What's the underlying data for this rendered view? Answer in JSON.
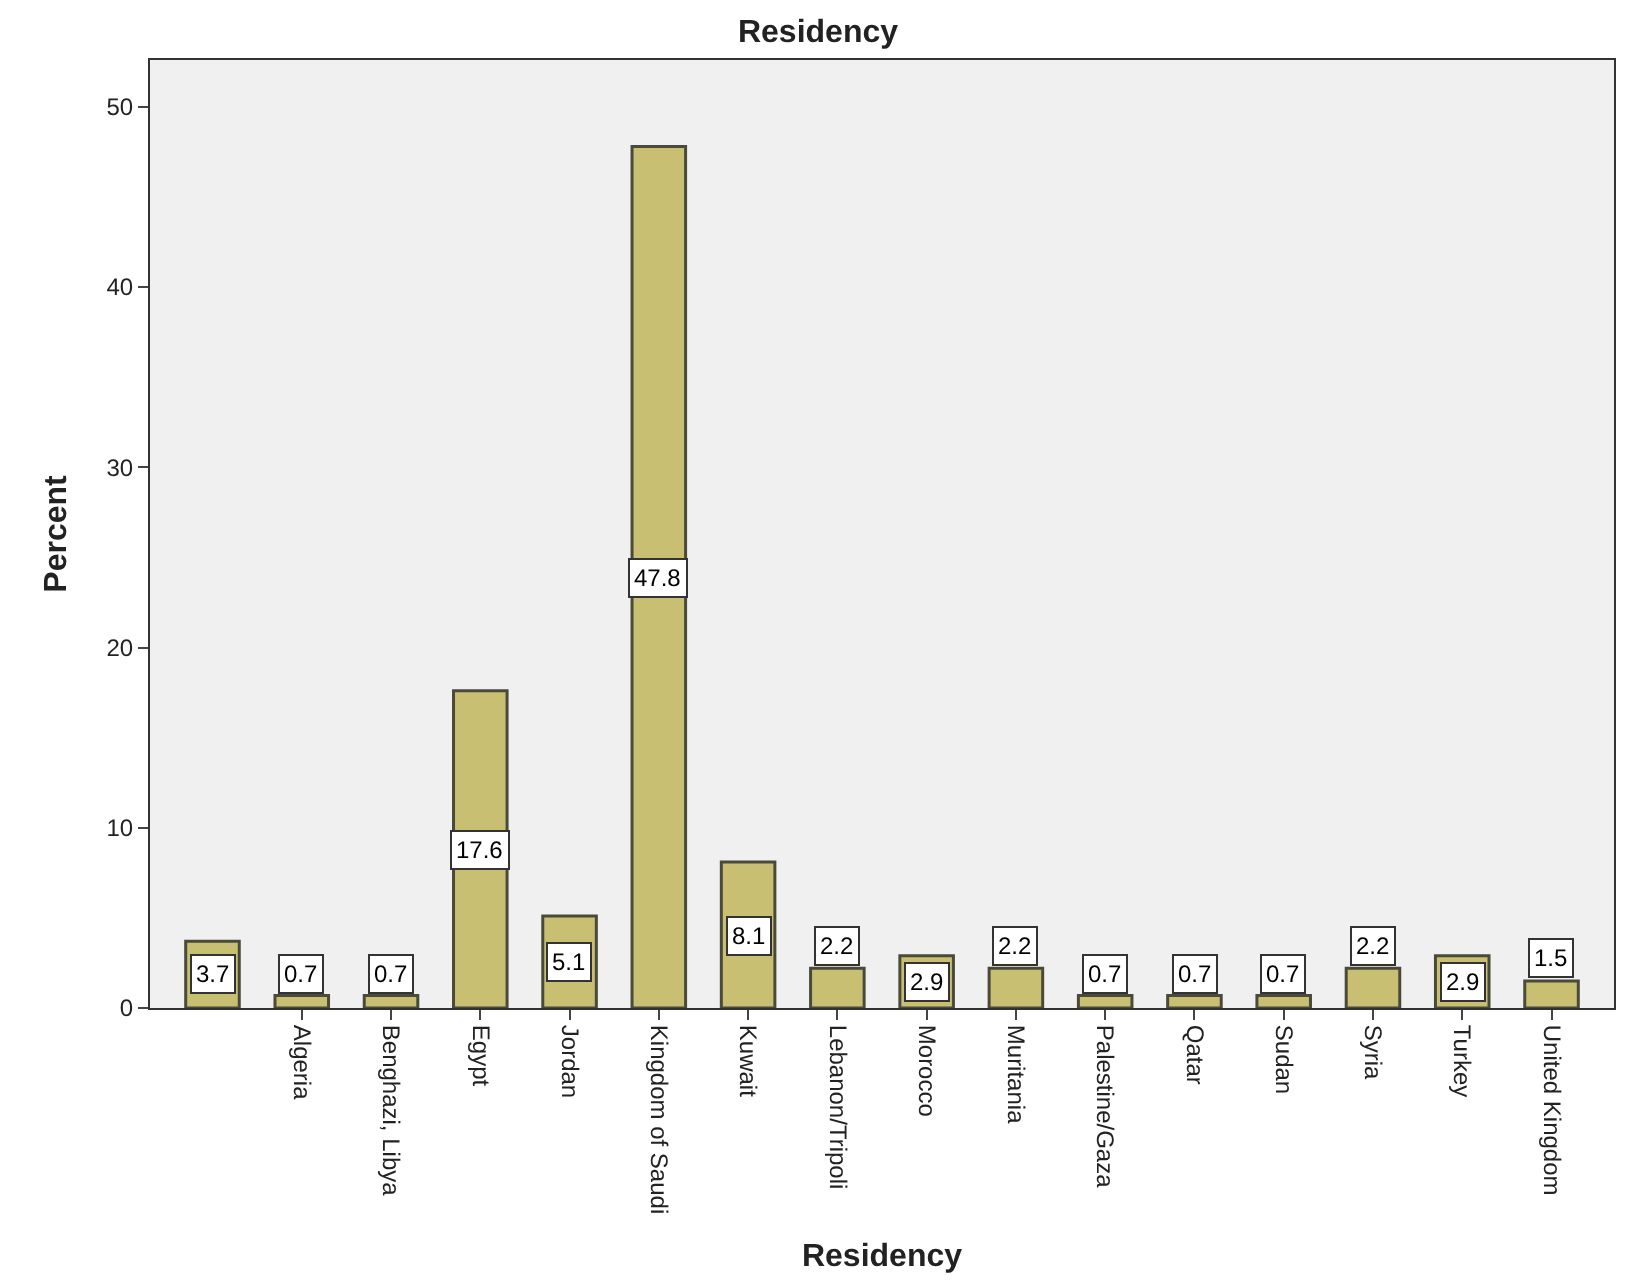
{
  "chart_data": {
    "type": "bar",
    "title": "Residency",
    "xlabel": "Residency",
    "ylabel": "Percent",
    "categories": [
      null,
      "Algeria",
      "Benghazi, Libya",
      "Egypt",
      "Jordan",
      "Kingdom of Saudi",
      "Kuwait",
      "Lebanon/Tripoli",
      "Morocco",
      "Muritania",
      "Palestine/Gaza",
      "Qatar",
      "Sudan",
      "Syria",
      "Turkey",
      "United Kingdom"
    ],
    "values": [
      3.7,
      0.7,
      0.7,
      17.6,
      5.1,
      47.8,
      8.1,
      2.2,
      2.9,
      2.2,
      0.7,
      0.7,
      0.7,
      2.2,
      2.9,
      1.5
    ],
    "color": "#c9bf72",
    "ylim": [
      0,
      52.6
    ],
    "yticks": [
      0,
      10,
      20,
      30,
      40,
      50
    ],
    "grid": false,
    "data_labels": true
  }
}
